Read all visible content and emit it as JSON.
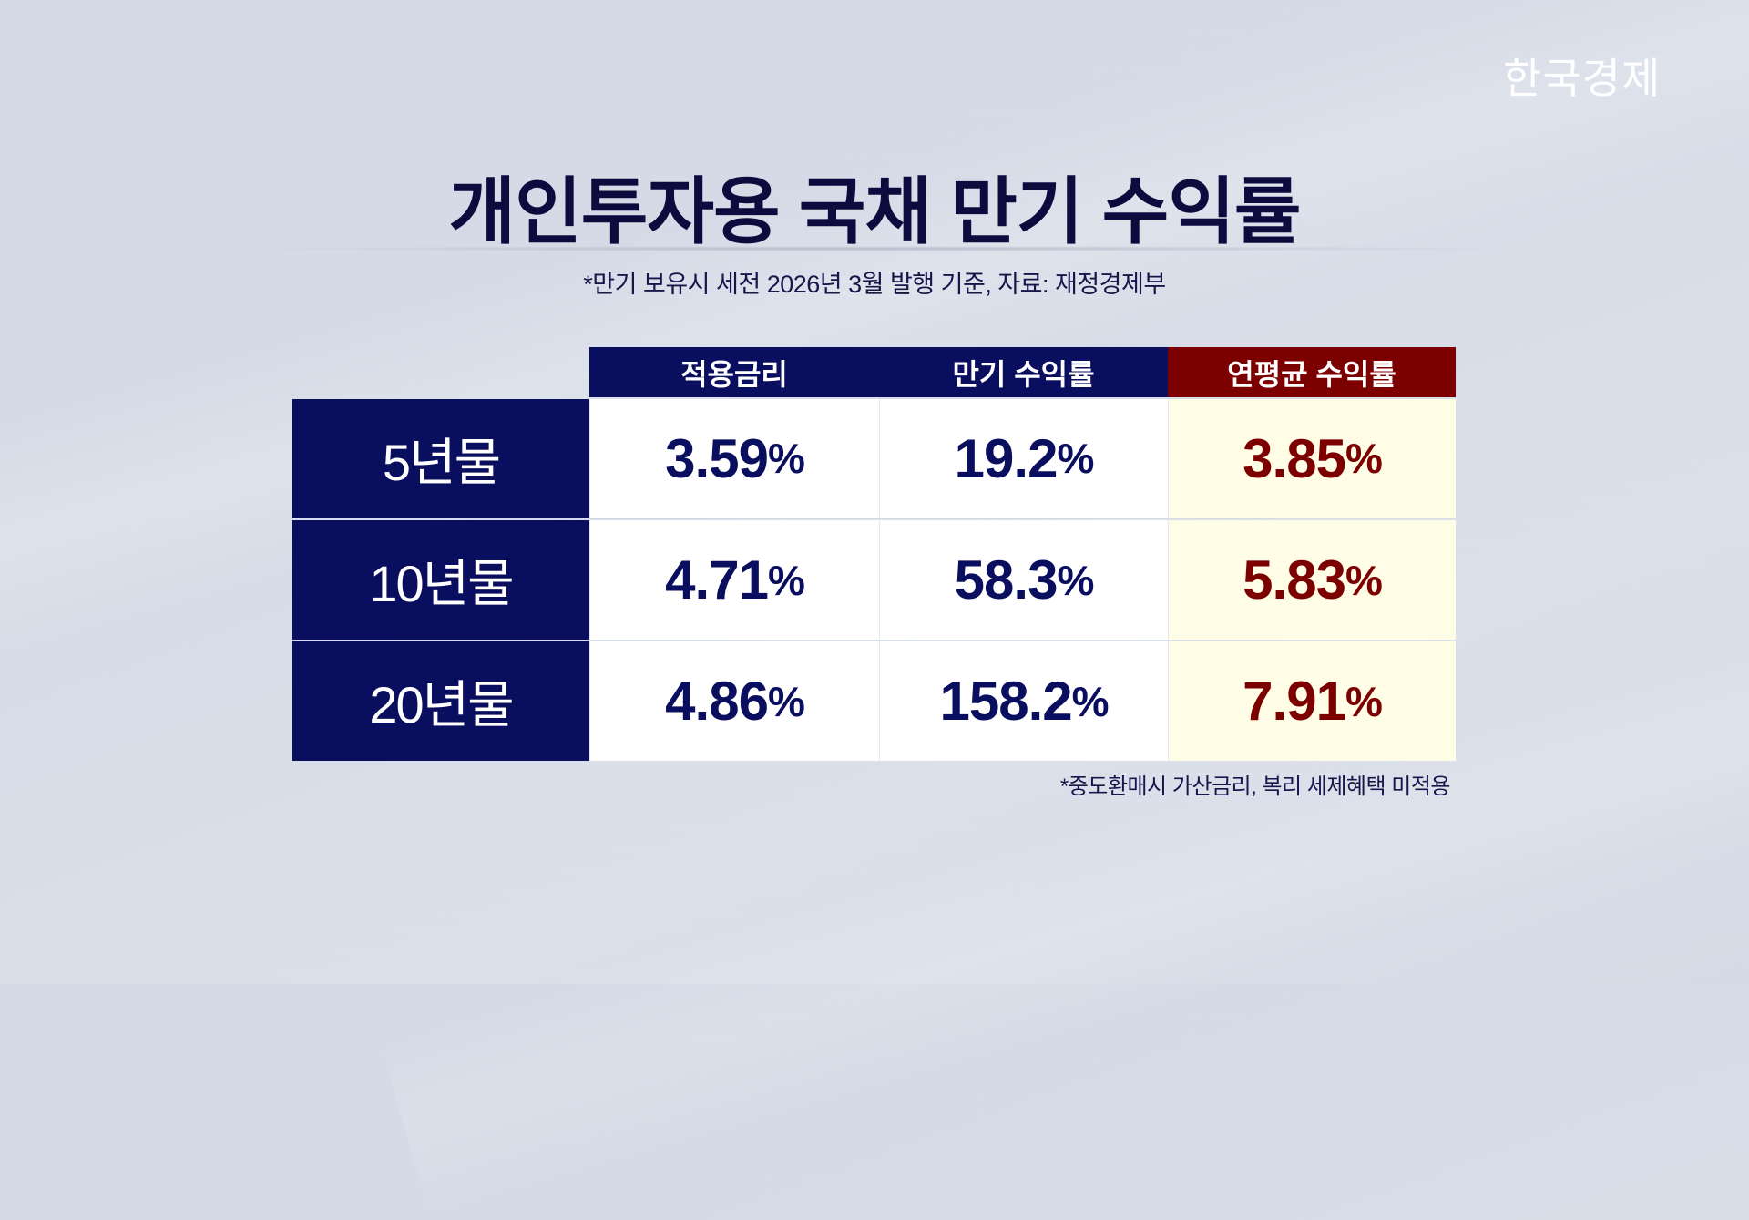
{
  "logo": "한국경제",
  "title": "개인투자용 국채 만기 수익률",
  "subtitle": "*만기 보유시 세전 2026년 3월 발행 기준, 자료: 재정경제부",
  "table": {
    "columns": [
      "적용금리",
      "만기 수익률",
      "연평균 수익률"
    ],
    "rows": [
      {
        "label": "5년물",
        "rate": "3.59",
        "maturity_yield": "19.2",
        "annual_yield": "3.85"
      },
      {
        "label": "10년물",
        "rate": "4.71",
        "maturity_yield": "58.3",
        "annual_yield": "5.83"
      },
      {
        "label": "20년물",
        "rate": "4.86",
        "maturity_yield": "158.2",
        "annual_yield": "7.91"
      }
    ],
    "unit": "%"
  },
  "footnote": "*중도환매시 가산금리, 복리 세제혜택 미적용",
  "colors": {
    "navy": "#0a0e5e",
    "accent_red": "#7d0000",
    "highlight": "#fffde6"
  }
}
